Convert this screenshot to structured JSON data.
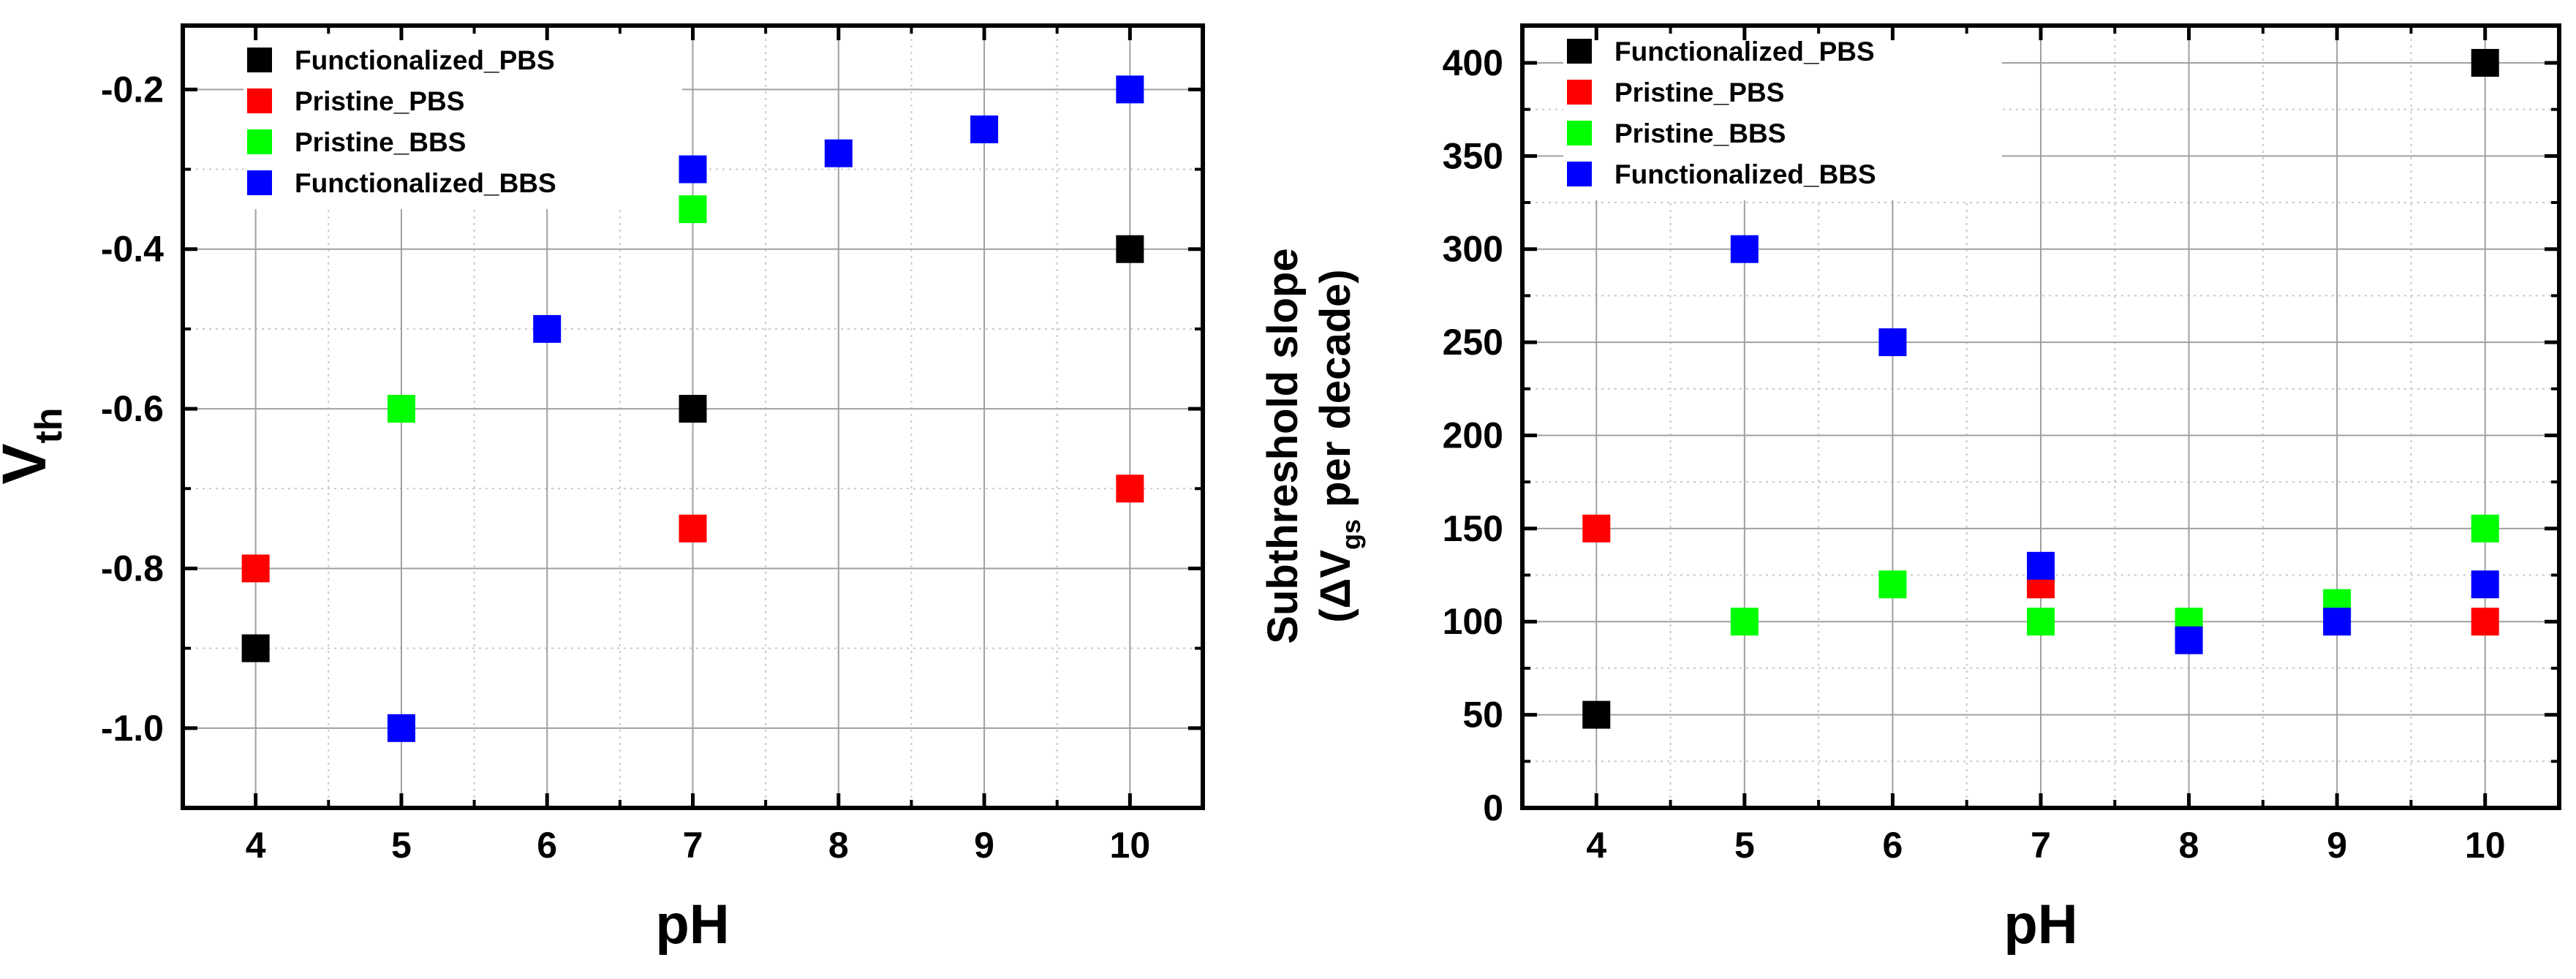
{
  "chart_data": [
    {
      "type": "scatter",
      "ylabel": "V",
      "ylabel_subscript": "th",
      "xlabel": "pH",
      "xlim": [
        3.5,
        10.5
      ],
      "ylim": [
        -1.1,
        -0.12
      ],
      "xticks": [
        4,
        5,
        6,
        7,
        8,
        9,
        10
      ],
      "yticks": [
        -1.0,
        -0.8,
        -0.6,
        -0.4,
        -0.2
      ],
      "ytick_labels": [
        "-1.0",
        "-0.8",
        "-0.6",
        "-0.4",
        "-0.2"
      ],
      "grid": true,
      "legend_position": "top-left",
      "series": [
        {
          "name": "Functionalized_PBS",
          "color": "#000000",
          "marker": "square",
          "points": [
            [
              4,
              -0.9
            ],
            [
              7,
              -0.6
            ],
            [
              10,
              -0.4
            ]
          ]
        },
        {
          "name": "Pristine_PBS",
          "color": "#ff0000",
          "marker": "square",
          "points": [
            [
              4,
              -0.8
            ],
            [
              7,
              -0.75
            ],
            [
              10,
              -0.7
            ]
          ]
        },
        {
          "name": "Pristine_BBS",
          "color": "#00ff00",
          "marker": "square",
          "points": [
            [
              5,
              -0.6
            ],
            [
              7,
              -0.35
            ]
          ]
        },
        {
          "name": "Functionalized_BBS",
          "color": "#0000ff",
          "marker": "square",
          "points": [
            [
              5,
              -1.0
            ],
            [
              6,
              -0.5
            ],
            [
              7,
              -0.3
            ],
            [
              8,
              -0.28
            ],
            [
              9,
              -0.25
            ],
            [
              10,
              -0.2
            ]
          ]
        }
      ]
    },
    {
      "type": "scatter",
      "ylabel_line1": "Subthreshold slope",
      "ylabel_line2_prefix": "(ΔV",
      "ylabel_line2_subscript": "gs",
      "ylabel_line2_suffix": " per decade)",
      "xlabel": "pH",
      "xlim": [
        3.5,
        10.5
      ],
      "ylim": [
        0,
        420
      ],
      "xticks": [
        4,
        5,
        6,
        7,
        8,
        9,
        10
      ],
      "yticks": [
        0,
        50,
        100,
        150,
        200,
        250,
        300,
        350,
        400
      ],
      "ytick_labels": [
        "0",
        "50",
        "100",
        "150",
        "200",
        "250",
        "300",
        "350",
        "400"
      ],
      "grid": true,
      "legend_position": "top-left",
      "series": [
        {
          "name": "Functionalized_PBS",
          "color": "#000000",
          "marker": "square",
          "points": [
            [
              4,
              50
            ],
            [
              10,
              400
            ]
          ]
        },
        {
          "name": "Pristine_PBS",
          "color": "#ff0000",
          "marker": "square",
          "points": [
            [
              4,
              150
            ],
            [
              7,
              120
            ],
            [
              10,
              100
            ]
          ]
        },
        {
          "name": "Pristine_BBS",
          "color": "#00ff00",
          "marker": "square",
          "points": [
            [
              5,
              100
            ],
            [
              6,
              120
            ],
            [
              7,
              100
            ],
            [
              8,
              100
            ],
            [
              9,
              110
            ],
            [
              10,
              150
            ]
          ]
        },
        {
          "name": "Functionalized_BBS",
          "color": "#0000ff",
          "marker": "square",
          "points": [
            [
              5,
              300
            ],
            [
              6,
              250
            ],
            [
              7,
              130
            ],
            [
              8,
              90
            ],
            [
              9,
              100
            ],
            [
              10,
              120
            ]
          ]
        }
      ]
    }
  ]
}
